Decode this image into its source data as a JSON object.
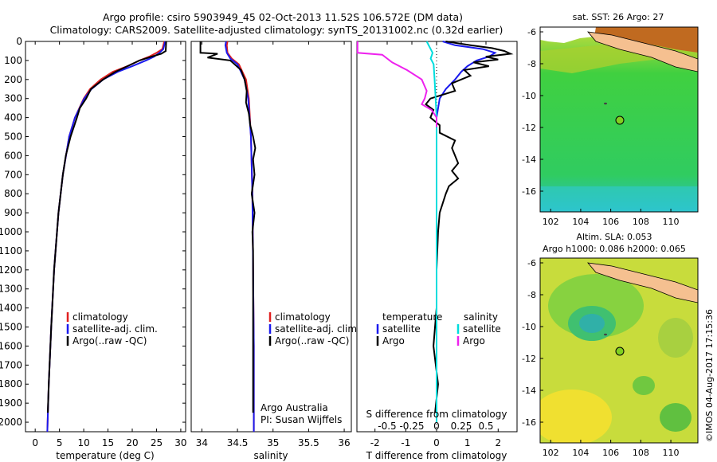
{
  "header": {
    "line1": "Argo profile: csiro 5903949_45 02-Oct-2013 11.52S 106.572E (DM data)",
    "line2": "Climatology: CARS2009. Satellite-adjusted climatology: synTS_20131002.nc (0.32d earlier)"
  },
  "side_label": "©IMOS 04-Aug-2017 17:15:36",
  "colors": {
    "climatology": "#e02020",
    "satellite": "#1a1aee",
    "argo": "#000000",
    "sal_sat": "#00dddd",
    "sal_argo": "#ee22ee"
  },
  "chart_data": [
    {
      "type": "line",
      "panel": "temperature",
      "xlabel": "temperature (deg C)",
      "xlim": [
        -2,
        31
      ],
      "ylim": [
        0,
        2050
      ],
      "xticks": [
        "0",
        "5",
        "10",
        "15",
        "20",
        "25",
        "30"
      ],
      "yticks": [
        "0",
        "100",
        "200",
        "300",
        "400",
        "500",
        "600",
        "700",
        "800",
        "900",
        "1000",
        "1100",
        "1200",
        "1300",
        "1400",
        "1500",
        "1600",
        "1700",
        "1800",
        "1900",
        "2000"
      ],
      "legend": [
        "climatology",
        "satellite-adj. clim.",
        "Argo(..raw -QC)"
      ],
      "series": [
        {
          "name": "climatology",
          "depth": [
            0,
            40,
            60,
            80,
            100,
            130,
            160,
            200,
            250,
            300,
            400,
            500,
            700,
            900,
            1200,
            1500,
            1800,
            2050
          ],
          "values": [
            26.6,
            26.2,
            25.0,
            23.5,
            21.5,
            19.0,
            16.0,
            13.5,
            11.3,
            10.0,
            8.2,
            7.0,
            5.7,
            4.8,
            3.9,
            3.3,
            2.8,
            2.5
          ]
        },
        {
          "name": "satellite-adj. clim.",
          "depth": [
            0,
            40,
            60,
            80,
            100,
            130,
            160,
            200,
            250,
            300,
            400,
            500,
            700,
            900,
            1200,
            1500,
            1800,
            2050
          ],
          "values": [
            26.8,
            26.4,
            25.6,
            24.5,
            22.8,
            20.0,
            17.0,
            14.0,
            11.6,
            10.1,
            8.2,
            7.0,
            5.7,
            4.8,
            3.9,
            3.3,
            2.8,
            2.5
          ]
        },
        {
          "name": "Argo(..raw -QC)",
          "depth": [
            0,
            50,
            65,
            80,
            100,
            130,
            160,
            200,
            250,
            300,
            350,
            400,
            500,
            600,
            700,
            900,
            1200,
            1500,
            1800,
            1950
          ],
          "values": [
            27.0,
            26.9,
            26.0,
            24.0,
            21.5,
            19.0,
            16.5,
            14.0,
            11.5,
            10.5,
            9.2,
            8.6,
            7.3,
            6.3,
            5.7,
            4.8,
            3.9,
            3.3,
            2.8,
            2.6
          ]
        }
      ]
    },
    {
      "type": "line",
      "panel": "salinity",
      "xlabel": "salinity",
      "xlim": [
        33.85,
        36.1
      ],
      "ylim": [
        0,
        2050
      ],
      "xticks": [
        "34",
        "34.5",
        "35",
        "35.5",
        "36"
      ],
      "legend": [
        "climatology",
        "satellite-adj. clim.",
        "Argo(..raw -QC)"
      ],
      "annotation": [
        "Argo Australia",
        "PI: Susan Wijffels"
      ],
      "series": [
        {
          "name": "climatology",
          "depth": [
            0,
            20,
            60,
            90,
            120,
            200,
            300,
            500,
            800,
            1200,
            1600,
            2050
          ],
          "values": [
            34.36,
            34.35,
            34.36,
            34.42,
            34.52,
            34.62,
            34.66,
            34.69,
            34.71,
            34.72,
            34.73,
            34.73
          ]
        },
        {
          "name": "satellite-adj. clim.",
          "depth": [
            0,
            20,
            60,
            90,
            120,
            200,
            300,
            500,
            800,
            1200,
            1600,
            2050
          ],
          "values": [
            34.34,
            34.33,
            34.35,
            34.4,
            34.5,
            34.6,
            34.65,
            34.69,
            34.71,
            34.72,
            34.73,
            34.73
          ]
        },
        {
          "name": "Argo(..raw -QC)",
          "depth": [
            0,
            60,
            65,
            85,
            100,
            150,
            200,
            260,
            320,
            380,
            440,
            500,
            560,
            620,
            700,
            800,
            900,
            1000,
            1100,
            1500,
            1950
          ],
          "values": [
            33.98,
            33.98,
            34.22,
            34.08,
            34.4,
            34.55,
            34.6,
            34.63,
            34.62,
            34.66,
            34.68,
            34.72,
            34.75,
            34.72,
            34.74,
            34.7,
            34.74,
            34.71,
            34.72,
            34.72,
            34.72
          ]
        }
      ]
    },
    {
      "type": "line",
      "panel": "difference",
      "xlabel_bottom": "T difference from climatology",
      "xlabel_top": "S difference from climatology",
      "xlim_T": [
        -2.6,
        2.6
      ],
      "xticks_T": [
        "-2",
        "-1",
        "0",
        "1",
        "2"
      ],
      "xticks_S": [
        "-0.5",
        "-0.25",
        "0",
        "0.25",
        "0.5"
      ],
      "ylim": [
        0,
        2050
      ],
      "legend_temperature": {
        "title": "temperature",
        "items": [
          "satellite",
          "Argo"
        ]
      },
      "legend_salinity": {
        "title": "salinity",
        "items": [
          "satellite",
          "Argo"
        ]
      },
      "series": [
        {
          "name": "T satellite",
          "depth": [
            0,
            20,
            40,
            60,
            80,
            100,
            130,
            160,
            200,
            250,
            300,
            400,
            600,
            1000,
            1500,
            2000
          ],
          "values": [
            0.2,
            0.6,
            1.5,
            1.9,
            1.7,
            1.3,
            1.0,
            0.8,
            0.6,
            0.3,
            0.1,
            0.0,
            0.0,
            0.0,
            0.0,
            0.0
          ]
        },
        {
          "name": "T Argo",
          "depth": [
            0,
            20,
            35,
            50,
            65,
            80,
            95,
            110,
            130,
            150,
            180,
            220,
            260,
            300,
            330,
            360,
            400,
            440,
            480,
            520,
            560,
            600,
            640,
            680,
            720,
            760,
            800,
            900,
            1000,
            1200,
            1400,
            1600,
            1800,
            1950
          ],
          "values": [
            0.3,
            1.1,
            1.8,
            2.2,
            2.4,
            1.6,
            2.0,
            1.2,
            1.7,
            0.9,
            1.1,
            0.5,
            0.6,
            -0.2,
            -0.35,
            -0.1,
            -0.2,
            0.1,
            0.1,
            0.6,
            0.5,
            0.6,
            0.7,
            0.5,
            0.7,
            0.4,
            0.3,
            0.1,
            0.05,
            0.0,
            0.0,
            -0.1,
            0.05,
            -0.05
          ]
        },
        {
          "name": "S satellite",
          "depth": [
            0,
            60,
            90,
            120,
            200,
            300,
            400,
            600,
            1000,
            1500,
            2000
          ],
          "values": [
            -0.1,
            -0.04,
            -0.06,
            -0.03,
            -0.02,
            -0.01,
            0.0,
            0.0,
            0.0,
            0.0,
            0.0
          ]
        },
        {
          "name": "S Argo",
          "depth": [
            0,
            60,
            70,
            90,
            110,
            150,
            200,
            260,
            300,
            330,
            360,
            400,
            450
          ],
          "values": [
            -0.8,
            -0.8,
            -0.55,
            -0.5,
            -0.45,
            -0.3,
            -0.15,
            -0.1,
            -0.12,
            -0.15,
            -0.05,
            0.0,
            0.0
          ]
        }
      ]
    }
  ],
  "maps": [
    {
      "title": "sat. SST: 26 Argo: 27",
      "yticks": [
        "-6",
        "-8",
        "-10",
        "-12",
        "-14",
        "-16"
      ]
    },
    {
      "title_line1": "Altim. SLA: 0.053",
      "title_line2": "Argo h1000: 0.086 h2000: 0.065",
      "yticks": [
        "-6",
        "-8",
        "-10",
        "-12",
        "-14",
        "-16"
      ],
      "xticks": [
        "102",
        "104",
        "106",
        "108",
        "110"
      ]
    }
  ]
}
